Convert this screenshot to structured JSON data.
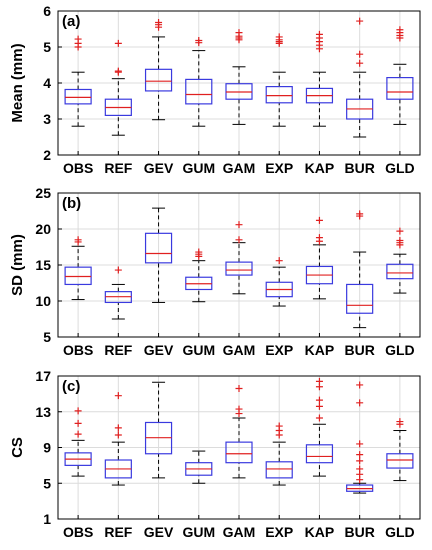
{
  "chart_data": [
    {
      "type": "box",
      "panel_label": "(a)",
      "ylabel": "Mean (mm)",
      "ylim": [
        2,
        6
      ],
      "yticks": [
        "2",
        "3",
        "4",
        "5",
        "6"
      ],
      "grid": true,
      "categories": [
        "OBS",
        "REF",
        "GEV",
        "GUM",
        "GAM",
        "EXP",
        "KAP",
        "BUR",
        "GLD"
      ],
      "boxes": [
        {
          "whisker_low": 2.8,
          "q1": 3.42,
          "median": 3.6,
          "q3": 3.82,
          "whisker_high": 4.3,
          "outliers": [
            5.0,
            5.1,
            5.22
          ]
        },
        {
          "whisker_low": 2.55,
          "q1": 3.1,
          "median": 3.32,
          "q3": 3.55,
          "whisker_high": 4.12,
          "outliers": [
            4.3,
            4.33,
            5.1
          ]
        },
        {
          "whisker_low": 2.98,
          "q1": 3.78,
          "median": 4.05,
          "q3": 4.38,
          "whisker_high": 5.28,
          "outliers": [
            5.55,
            5.62,
            5.68
          ]
        },
        {
          "whisker_low": 2.8,
          "q1": 3.42,
          "median": 3.68,
          "q3": 4.1,
          "whisker_high": 4.9,
          "outliers": [
            5.12,
            5.18
          ]
        },
        {
          "whisker_low": 2.85,
          "q1": 3.55,
          "median": 3.75,
          "q3": 3.98,
          "whisker_high": 4.45,
          "outliers": [
            5.2,
            5.25,
            5.3,
            5.4
          ]
        },
        {
          "whisker_low": 2.8,
          "q1": 3.45,
          "median": 3.65,
          "q3": 3.9,
          "whisker_high": 4.3,
          "outliers": [
            5.1,
            5.15,
            5.2,
            5.28
          ]
        },
        {
          "whisker_low": 2.8,
          "q1": 3.45,
          "median": 3.65,
          "q3": 3.85,
          "whisker_high": 4.3,
          "outliers": [
            4.95,
            5.05,
            5.15,
            5.25,
            5.35
          ]
        },
        {
          "whisker_low": 2.5,
          "q1": 3.0,
          "median": 3.28,
          "q3": 3.55,
          "whisker_high": 4.3,
          "outliers": [
            4.55,
            4.8,
            5.72
          ]
        },
        {
          "whisker_low": 2.85,
          "q1": 3.55,
          "median": 3.75,
          "q3": 4.15,
          "whisker_high": 4.52,
          "outliers": [
            5.25,
            5.32,
            5.4,
            5.48
          ]
        }
      ]
    },
    {
      "type": "box",
      "panel_label": "(b)",
      "ylabel": "SD (mm)",
      "ylim": [
        5,
        25
      ],
      "yticks": [
        "5",
        "10",
        "15",
        "20",
        "25"
      ],
      "grid": true,
      "categories": [
        "OBS",
        "REF",
        "GEV",
        "GUM",
        "GAM",
        "EXP",
        "KAP",
        "BUR",
        "GLD"
      ],
      "boxes": [
        {
          "whisker_low": 10.2,
          "q1": 12.3,
          "median": 13.4,
          "q3": 14.7,
          "whisker_high": 17.6,
          "outliers": [
            18.2,
            18.5
          ]
        },
        {
          "whisker_low": 7.5,
          "q1": 9.8,
          "median": 10.6,
          "q3": 11.3,
          "whisker_high": 12.3,
          "outliers": [
            14.3
          ]
        },
        {
          "whisker_low": 9.8,
          "q1": 15.3,
          "median": 16.6,
          "q3": 19.4,
          "whisker_high": 22.9,
          "outliers": []
        },
        {
          "whisker_low": 9.9,
          "q1": 11.6,
          "median": 12.4,
          "q3": 13.3,
          "whisker_high": 15.6,
          "outliers": [
            16.2,
            16.5,
            16.8
          ]
        },
        {
          "whisker_low": 11.0,
          "q1": 13.6,
          "median": 14.3,
          "q3": 15.4,
          "whisker_high": 18.1,
          "outliers": [
            18.5,
            20.6
          ]
        },
        {
          "whisker_low": 9.3,
          "q1": 10.6,
          "median": 11.6,
          "q3": 12.6,
          "whisker_high": 14.7,
          "outliers": [
            15.6
          ]
        },
        {
          "whisker_low": 10.3,
          "q1": 12.4,
          "median": 13.6,
          "q3": 14.8,
          "whisker_high": 17.8,
          "outliers": [
            18.3,
            18.8,
            21.2
          ]
        },
        {
          "whisker_low": 6.3,
          "q1": 8.3,
          "median": 9.4,
          "q3": 12.3,
          "whisker_high": 16.8,
          "outliers": [
            21.8,
            22.1
          ]
        },
        {
          "whisker_low": 11.1,
          "q1": 13.1,
          "median": 13.9,
          "q3": 15.1,
          "whisker_high": 16.5,
          "outliers": [
            17.8,
            18.1,
            18.4,
            19.7
          ]
        }
      ]
    },
    {
      "type": "box",
      "panel_label": "(c)",
      "ylabel": "CS",
      "ylim": [
        1,
        17
      ],
      "yticks": [
        "1",
        "5",
        "9",
        "13",
        "17"
      ],
      "grid": true,
      "categories": [
        "OBS",
        "REF",
        "GEV",
        "GUM",
        "GAM",
        "EXP",
        "KAP",
        "BUR",
        "GLD"
      ],
      "boxes": [
        {
          "whisker_low": 5.8,
          "q1": 7.0,
          "median": 7.7,
          "q3": 8.4,
          "whisker_high": 9.8,
          "outliers": [
            10.5,
            11.7,
            13.1
          ]
        },
        {
          "whisker_low": 4.8,
          "q1": 5.6,
          "median": 6.6,
          "q3": 7.6,
          "whisker_high": 9.6,
          "outliers": [
            10.4,
            11.2,
            14.8
          ]
        },
        {
          "whisker_low": 5.6,
          "q1": 8.3,
          "median": 10.1,
          "q3": 11.8,
          "whisker_high": 16.3,
          "outliers": []
        },
        {
          "whisker_low": 5.0,
          "q1": 5.9,
          "median": 6.6,
          "q3": 7.3,
          "whisker_high": 8.6,
          "outliers": []
        },
        {
          "whisker_low": 5.6,
          "q1": 7.3,
          "median": 8.3,
          "q3": 9.6,
          "whisker_high": 12.3,
          "outliers": [
            12.8,
            13.3,
            15.6
          ]
        },
        {
          "whisker_low": 4.8,
          "q1": 5.6,
          "median": 6.6,
          "q3": 7.4,
          "whisker_high": 9.6,
          "outliers": [
            10.4,
            10.9,
            11.4
          ]
        },
        {
          "whisker_low": 5.8,
          "q1": 7.3,
          "median": 8.0,
          "q3": 9.3,
          "whisker_high": 11.6,
          "outliers": [
            12.3,
            13.6,
            14.3,
            15.8,
            16.4
          ]
        },
        {
          "whisker_low": 3.9,
          "q1": 4.1,
          "median": 4.4,
          "q3": 4.8,
          "whisker_high": 5.0,
          "outliers": [
            5.4,
            6.0,
            6.6,
            7.5,
            8.2,
            9.4,
            14.0,
            16.0
          ]
        },
        {
          "whisker_low": 5.3,
          "q1": 6.7,
          "median": 7.6,
          "q3": 8.3,
          "whisker_high": 10.9,
          "outliers": [
            11.6,
            11.9
          ]
        }
      ]
    }
  ],
  "colors": {
    "box": "#3a3adf",
    "median": "#e02020",
    "outlier": "#e02020",
    "whisker": "#000000",
    "grid": "#dcdcdc",
    "axis": "#000000"
  }
}
